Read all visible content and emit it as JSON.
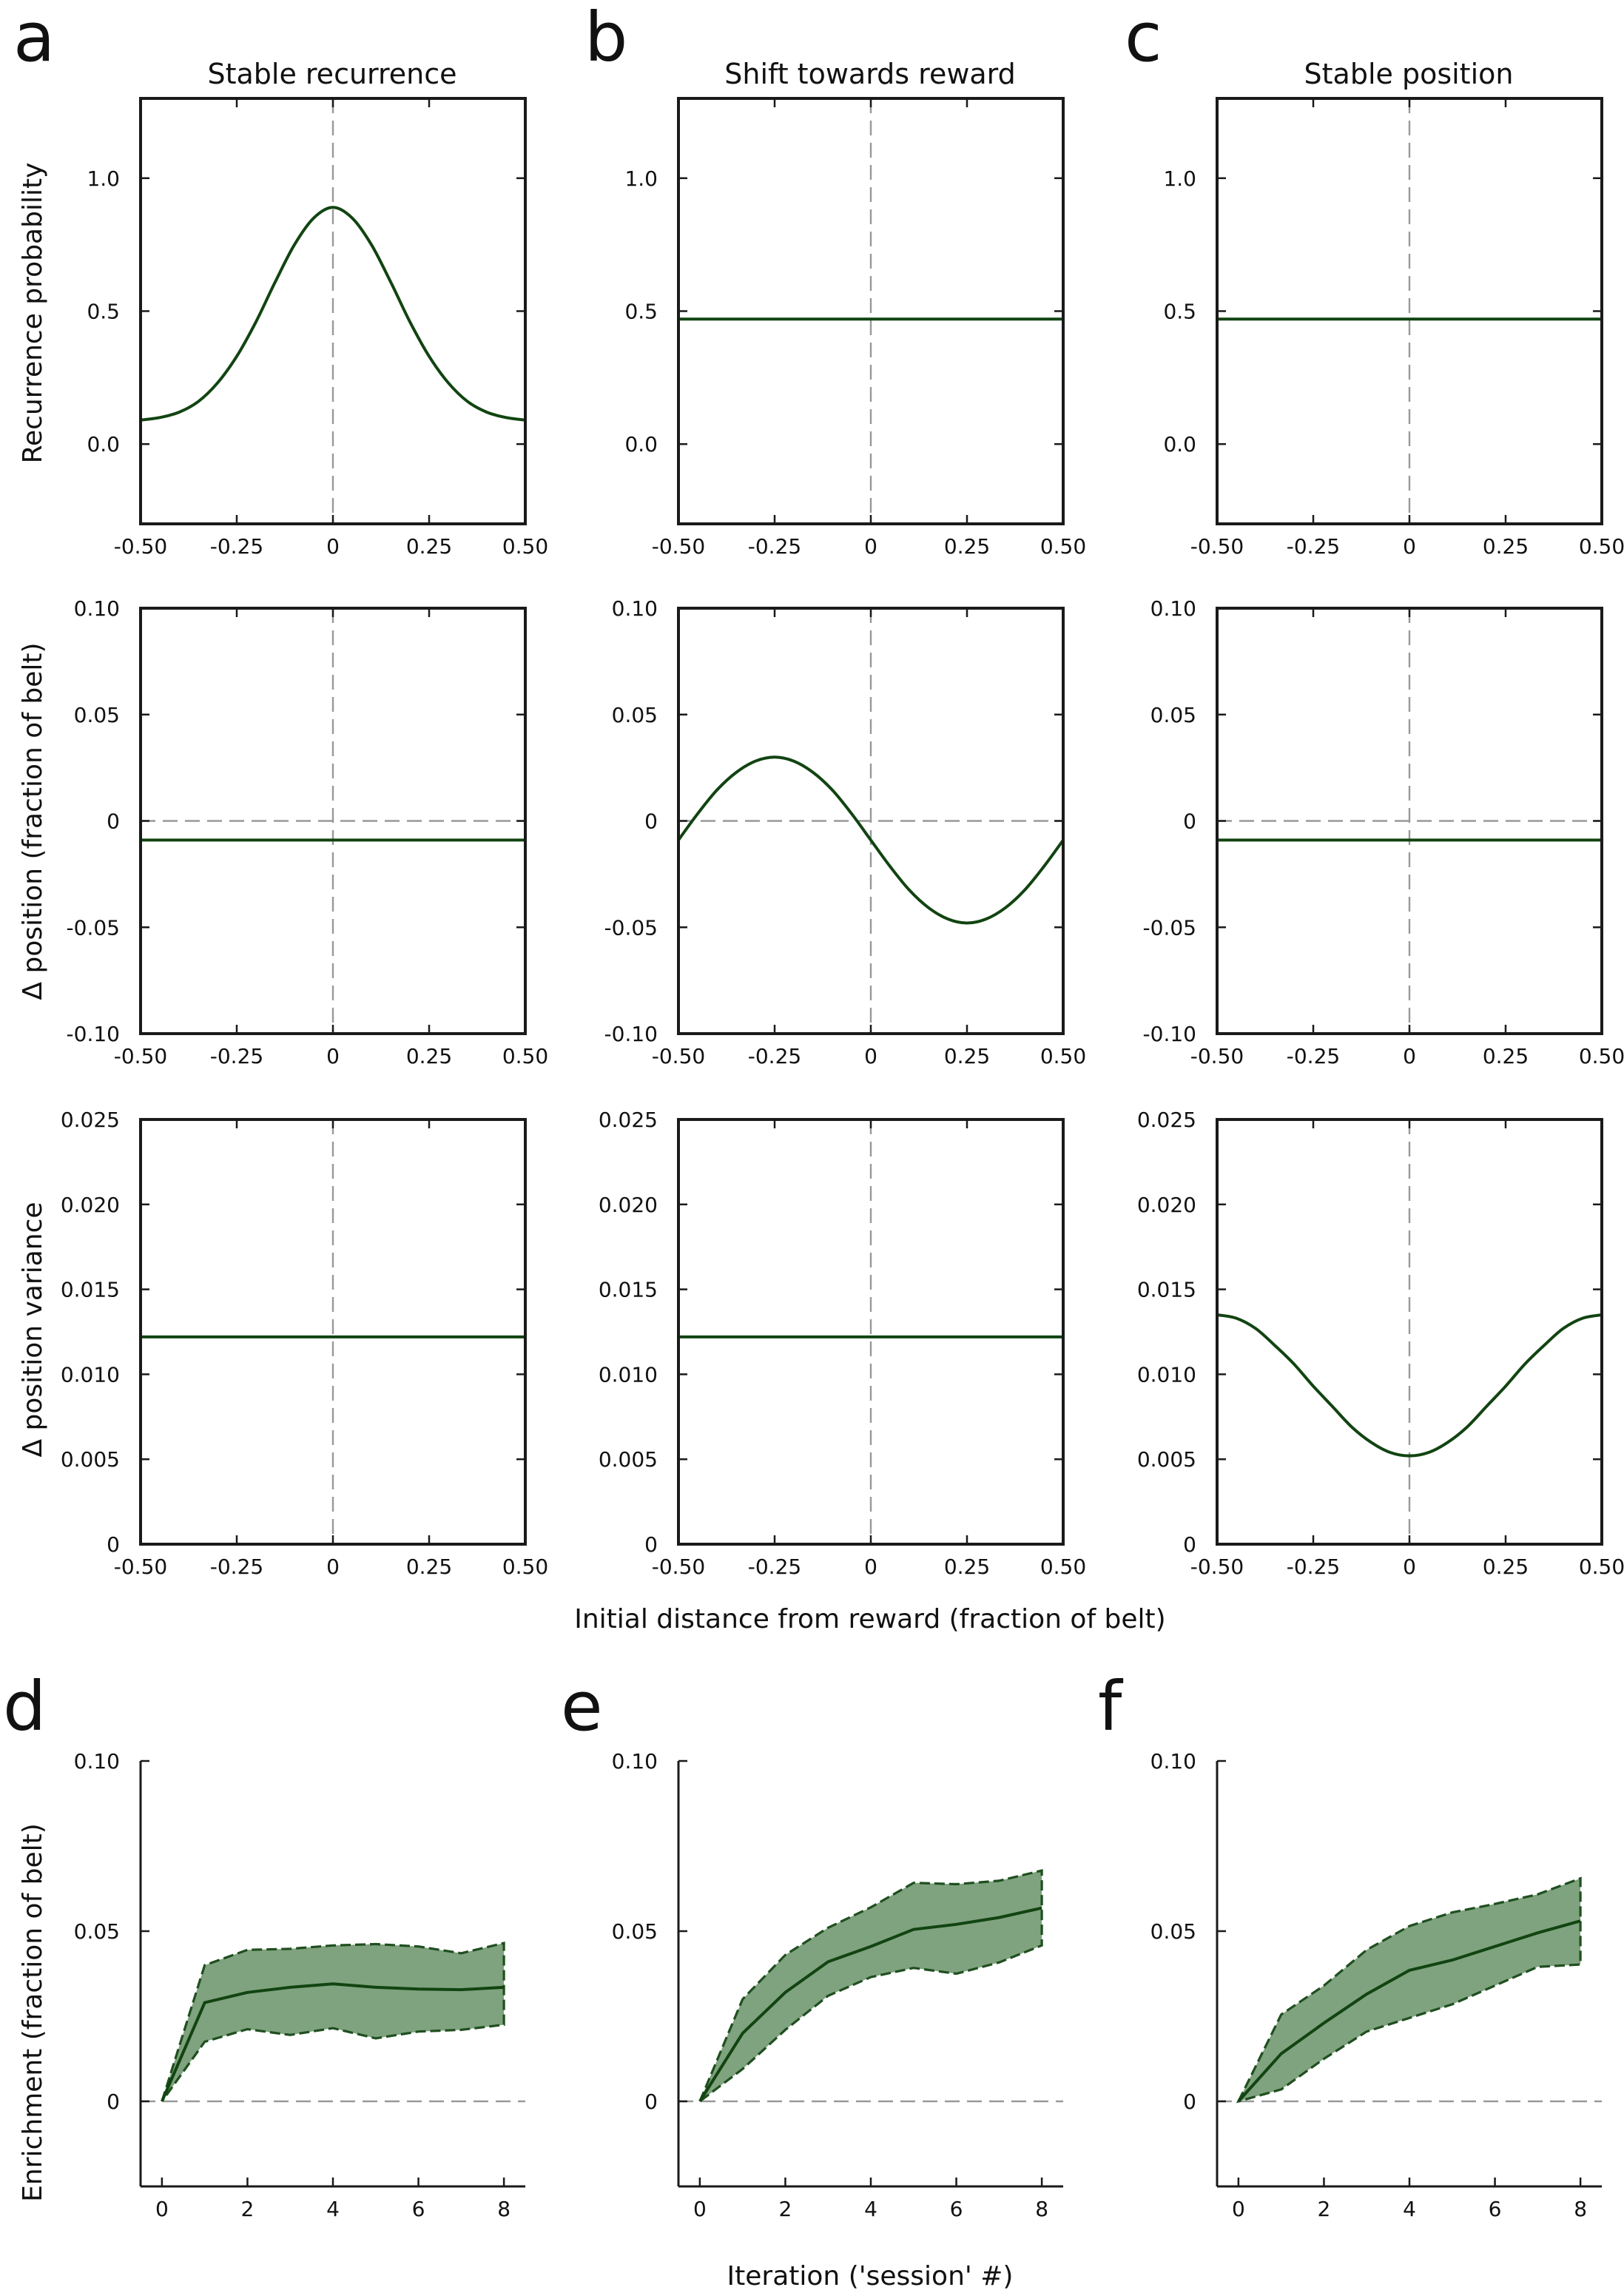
{
  "panel_letters": [
    "a",
    "b",
    "c",
    "d",
    "e",
    "f"
  ],
  "column_titles": [
    "Stable recurrence",
    "Shift towards reward",
    "Stable position"
  ],
  "row_ylabels": [
    "Recurrence probability",
    "Δ position (fraction of belt)",
    "Δ position variance"
  ],
  "top_xlabel": "Initial distance from reward (fraction of belt)",
  "bottom_ylabel": "Enrichment (fraction of belt)",
  "bottom_xlabel": "Iteration ('session' #)",
  "colors": {
    "line": "#114411",
    "band_fill": "#7fa27f",
    "reference": "#999999"
  },
  "chart_data": [
    {
      "id": "a1",
      "type": "line",
      "title": "Stable recurrence",
      "ylabel": "Recurrence probability",
      "xlim": [
        -0.5,
        0.5
      ],
      "ylim": [
        -0.3,
        1.3
      ],
      "xticks": [
        -0.5,
        -0.25,
        0,
        0.25,
        0.5
      ],
      "xtick_labels": [
        "-0.50",
        "-0.25",
        "0",
        "0.25",
        "0.50"
      ],
      "yticks": [
        0,
        0.5,
        1
      ],
      "ytick_labels": [
        "0.0",
        "0.5",
        "1.0"
      ],
      "vline": 0,
      "hline": null,
      "x": [
        -0.5,
        -0.45,
        -0.4,
        -0.35,
        -0.3,
        -0.25,
        -0.2,
        -0.15,
        -0.1,
        -0.05,
        0,
        0.05,
        0.1,
        0.15,
        0.2,
        0.25,
        0.3,
        0.35,
        0.4,
        0.45,
        0.5
      ],
      "y": [
        0.09,
        0.1,
        0.12,
        0.16,
        0.23,
        0.33,
        0.46,
        0.61,
        0.75,
        0.85,
        0.89,
        0.85,
        0.75,
        0.61,
        0.46,
        0.33,
        0.23,
        0.16,
        0.12,
        0.1,
        0.09
      ]
    },
    {
      "id": "b1",
      "type": "line",
      "title": "Shift towards reward",
      "ylabel": "",
      "xlim": [
        -0.5,
        0.5
      ],
      "ylim": [
        -0.3,
        1.3
      ],
      "xticks": [
        -0.5,
        -0.25,
        0,
        0.25,
        0.5
      ],
      "xtick_labels": [
        "-0.50",
        "-0.25",
        "0",
        "0.25",
        "0.50"
      ],
      "yticks": [
        0,
        0.5,
        1
      ],
      "ytick_labels": [
        "0.0",
        "0.5",
        "1.0"
      ],
      "vline": 0,
      "hline": null,
      "x": [
        -0.5,
        0.5
      ],
      "y": [
        0.47,
        0.47
      ]
    },
    {
      "id": "c1",
      "type": "line",
      "title": "Stable position",
      "ylabel": "",
      "xlim": [
        -0.5,
        0.5
      ],
      "ylim": [
        -0.3,
        1.3
      ],
      "xticks": [
        -0.5,
        -0.25,
        0,
        0.25,
        0.5
      ],
      "xtick_labels": [
        "-0.50",
        "-0.25",
        "0",
        "0.25",
        "0.50"
      ],
      "yticks": [
        0,
        0.5,
        1
      ],
      "ytick_labels": [
        "0.0",
        "0.5",
        "1.0"
      ],
      "vline": 0,
      "hline": null,
      "x": [
        -0.5,
        0.5
      ],
      "y": [
        0.47,
        0.47
      ]
    },
    {
      "id": "a2",
      "type": "line",
      "title": "",
      "ylabel": "Δ position (fraction of belt)",
      "xlim": [
        -0.5,
        0.5
      ],
      "ylim": [
        -0.1,
        0.1
      ],
      "xticks": [
        -0.5,
        -0.25,
        0,
        0.25,
        0.5
      ],
      "xtick_labels": [
        "-0.50",
        "-0.25",
        "0",
        "0.25",
        "0.50"
      ],
      "yticks": [
        -0.1,
        -0.05,
        0,
        0.05,
        0.1
      ],
      "ytick_labels": [
        "-0.10",
        "-0.05",
        "0",
        "0.05",
        "0.10"
      ],
      "vline": 0,
      "hline": 0,
      "x": [
        -0.5,
        0.5
      ],
      "y": [
        -0.009,
        -0.009
      ]
    },
    {
      "id": "b2",
      "type": "line",
      "title": "",
      "ylabel": "",
      "xlim": [
        -0.5,
        0.5
      ],
      "ylim": [
        -0.1,
        0.1
      ],
      "xticks": [
        -0.5,
        -0.25,
        0,
        0.25,
        0.5
      ],
      "xtick_labels": [
        "-0.50",
        "-0.25",
        "0",
        "0.25",
        "0.50"
      ],
      "yticks": [
        -0.1,
        -0.05,
        0,
        0.05,
        0.1
      ],
      "ytick_labels": [
        "-0.10",
        "-0.05",
        "0",
        "0.05",
        "0.10"
      ],
      "vline": 0,
      "hline": 0,
      "x": [
        -0.5,
        -0.45,
        -0.4,
        -0.35,
        -0.3,
        -0.25,
        -0.2,
        -0.15,
        -0.1,
        -0.05,
        0,
        0.05,
        0.1,
        0.15,
        0.2,
        0.25,
        0.3,
        0.35,
        0.4,
        0.45,
        0.5
      ],
      "y": [
        -0.009,
        0.0034,
        0.0145,
        0.0228,
        0.0281,
        0.03,
        0.0281,
        0.0228,
        0.0145,
        0.0034,
        -0.009,
        -0.0214,
        -0.0325,
        -0.0408,
        -0.0461,
        -0.048,
        -0.0461,
        -0.0408,
        -0.0325,
        -0.0214,
        -0.009
      ]
    },
    {
      "id": "c2",
      "type": "line",
      "title": "",
      "ylabel": "",
      "xlim": [
        -0.5,
        0.5
      ],
      "ylim": [
        -0.1,
        0.1
      ],
      "xticks": [
        -0.5,
        -0.25,
        0,
        0.25,
        0.5
      ],
      "xtick_labels": [
        "-0.50",
        "-0.25",
        "0",
        "0.25",
        "0.50"
      ],
      "yticks": [
        -0.1,
        -0.05,
        0,
        0.05,
        0.1
      ],
      "ytick_labels": [
        "-0.10",
        "-0.05",
        "0",
        "0.05",
        "0.10"
      ],
      "vline": 0,
      "hline": 0,
      "x": [
        -0.5,
        0.5
      ],
      "y": [
        -0.009,
        -0.009
      ]
    },
    {
      "id": "a3",
      "type": "line",
      "title": "",
      "ylabel": "Δ position variance",
      "xlim": [
        -0.5,
        0.5
      ],
      "ylim": [
        0,
        0.025
      ],
      "xticks": [
        -0.5,
        -0.25,
        0,
        0.25,
        0.5
      ],
      "xtick_labels": [
        "-0.50",
        "-0.25",
        "0",
        "0.25",
        "0.50"
      ],
      "yticks": [
        0,
        0.005,
        0.01,
        0.015,
        0.02,
        0.025
      ],
      "ytick_labels": [
        "0",
        "0.005",
        "0.010",
        "0.015",
        "0.020",
        "0.025"
      ],
      "vline": 0,
      "hline": null,
      "x": [
        -0.5,
        0.5
      ],
      "y": [
        0.0122,
        0.0122
      ]
    },
    {
      "id": "b3",
      "type": "line",
      "title": "",
      "ylabel": "",
      "xlim": [
        -0.5,
        0.5
      ],
      "ylim": [
        0,
        0.025
      ],
      "xticks": [
        -0.5,
        -0.25,
        0,
        0.25,
        0.5
      ],
      "xtick_labels": [
        "-0.50",
        "-0.25",
        "0",
        "0.25",
        "0.50"
      ],
      "yticks": [
        0,
        0.005,
        0.01,
        0.015,
        0.02,
        0.025
      ],
      "ytick_labels": [
        "0",
        "0.005",
        "0.010",
        "0.015",
        "0.020",
        "0.025"
      ],
      "vline": 0,
      "hline": null,
      "x": [
        -0.5,
        0.5
      ],
      "y": [
        0.0122,
        0.0122
      ]
    },
    {
      "id": "c3",
      "type": "line",
      "title": "",
      "ylabel": "",
      "xlim": [
        -0.5,
        0.5
      ],
      "ylim": [
        0,
        0.025
      ],
      "xticks": [
        -0.5,
        -0.25,
        0,
        0.25,
        0.5
      ],
      "xtick_labels": [
        "-0.50",
        "-0.25",
        "0",
        "0.25",
        "0.50"
      ],
      "yticks": [
        0,
        0.005,
        0.01,
        0.015,
        0.02,
        0.025
      ],
      "ytick_labels": [
        "0",
        "0.005",
        "0.010",
        "0.015",
        "0.020",
        "0.025"
      ],
      "vline": 0,
      "hline": null,
      "x": [
        -0.5,
        -0.45,
        -0.4,
        -0.35,
        -0.3,
        -0.25,
        -0.2,
        -0.15,
        -0.1,
        -0.05,
        0,
        0.05,
        0.1,
        0.15,
        0.2,
        0.25,
        0.3,
        0.35,
        0.4,
        0.45,
        0.5
      ],
      "y": [
        0.0135,
        0.0133,
        0.0127,
        0.0117,
        0.0106,
        0.0093,
        0.0081,
        0.0069,
        0.006,
        0.0054,
        0.0052,
        0.0054,
        0.006,
        0.0069,
        0.0081,
        0.0093,
        0.0106,
        0.0117,
        0.0127,
        0.0133,
        0.0135
      ]
    },
    {
      "id": "d",
      "type": "area",
      "title": "",
      "ylabel": "Enrichment (fraction of belt)",
      "xlim": [
        -0.5,
        8.5
      ],
      "ylim": [
        -0.025,
        0.1
      ],
      "xticks": [
        0,
        2,
        4,
        6,
        8
      ],
      "xtick_labels": [
        "0",
        "2",
        "4",
        "6",
        "8"
      ],
      "yticks": [
        0,
        0.05,
        0.1
      ],
      "ytick_labels": [
        "0",
        "0.05",
        "0.10"
      ],
      "vline": null,
      "hline": 0,
      "x": [
        0,
        1,
        2,
        3,
        4,
        5,
        6,
        7,
        8
      ],
      "y": [
        0,
        0.029,
        0.032,
        0.0335,
        0.0345,
        0.0335,
        0.033,
        0.0328,
        0.0335
      ],
      "upper": [
        0,
        0.04,
        0.0445,
        0.0448,
        0.0458,
        0.0462,
        0.0455,
        0.0435,
        0.0465
      ],
      "lower": [
        0,
        0.0175,
        0.0212,
        0.0195,
        0.0215,
        0.0185,
        0.0205,
        0.021,
        0.0225
      ]
    },
    {
      "id": "e",
      "type": "area",
      "title": "",
      "ylabel": "",
      "xlim": [
        -0.5,
        8.5
      ],
      "ylim": [
        -0.025,
        0.1
      ],
      "xticks": [
        0,
        2,
        4,
        6,
        8
      ],
      "xtick_labels": [
        "0",
        "2",
        "4",
        "6",
        "8"
      ],
      "yticks": [
        0,
        0.05,
        0.1
      ],
      "ytick_labels": [
        "0",
        "0.05",
        "0.10"
      ],
      "vline": null,
      "hline": 0,
      "x": [
        0,
        1,
        2,
        3,
        4,
        5,
        6,
        7,
        8
      ],
      "y": [
        0,
        0.02,
        0.032,
        0.041,
        0.0455,
        0.0505,
        0.052,
        0.054,
        0.0568
      ],
      "upper": [
        0,
        0.03,
        0.043,
        0.051,
        0.057,
        0.0642,
        0.0638,
        0.0648,
        0.0678
      ],
      "lower": [
        0,
        0.0095,
        0.021,
        0.031,
        0.0365,
        0.0392,
        0.0375,
        0.0408,
        0.0458
      ]
    },
    {
      "id": "f",
      "type": "area",
      "title": "",
      "ylabel": "",
      "xlim": [
        -0.5,
        8.5
      ],
      "ylim": [
        -0.025,
        0.1
      ],
      "xticks": [
        0,
        2,
        4,
        6,
        8
      ],
      "xtick_labels": [
        "0",
        "2",
        "4",
        "6",
        "8"
      ],
      "yticks": [
        0,
        0.05,
        0.1
      ],
      "ytick_labels": [
        "0",
        "0.05",
        "0.10"
      ],
      "vline": null,
      "hline": 0,
      "x": [
        0,
        1,
        2,
        3,
        4,
        5,
        6,
        7,
        8
      ],
      "y": [
        0,
        0.014,
        0.023,
        0.0315,
        0.0385,
        0.0415,
        0.0455,
        0.0495,
        0.053
      ],
      "upper": [
        0,
        0.0255,
        0.034,
        0.0445,
        0.0515,
        0.0555,
        0.058,
        0.0608,
        0.0655
      ],
      "lower": [
        0,
        0.0035,
        0.0125,
        0.0205,
        0.0245,
        0.0285,
        0.034,
        0.0395,
        0.0402
      ]
    }
  ]
}
